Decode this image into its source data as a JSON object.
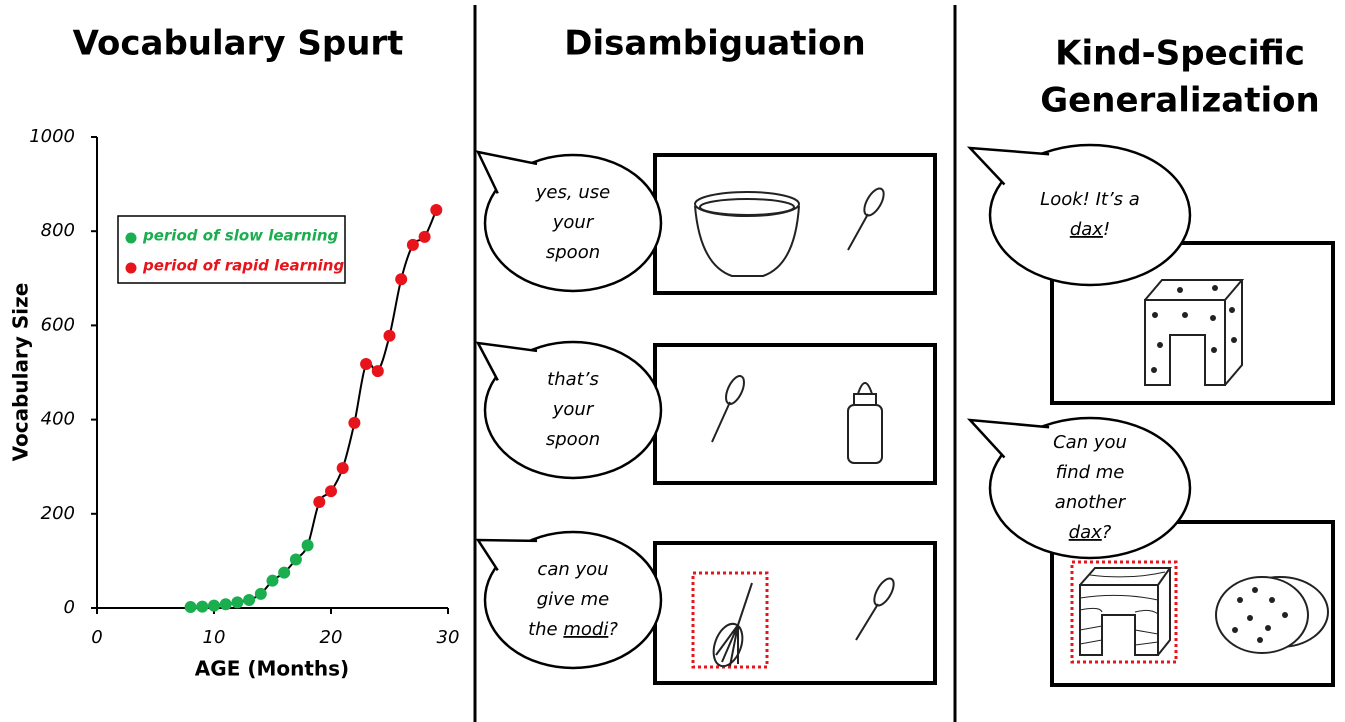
{
  "chart_data": {
    "type": "scatter",
    "title": "Vocabulary Spurt",
    "x_label": "AGE (Months)",
    "y_label": "Vocabulary Size",
    "xlim": [
      0,
      30
    ],
    "xticks": [
      0,
      10,
      20,
      30
    ],
    "ylim": [
      0,
      1000
    ],
    "yticks": [
      0,
      200,
      400,
      600,
      800,
      1000
    ],
    "legend": "upper left",
    "trend_line": true,
    "series": [
      {
        "name": "period of slow learning",
        "color": "#1aae4f",
        "x": [
          8,
          9,
          10,
          11,
          12,
          13,
          14,
          15,
          16,
          17,
          18
        ],
        "values": [
          2,
          3,
          5,
          8,
          12,
          17,
          30,
          58,
          75,
          103,
          133
        ]
      },
      {
        "name": "period of rapid learning",
        "color": "#e8141b",
        "x": [
          19,
          20,
          21,
          22,
          23,
          24,
          25,
          26,
          27,
          28,
          29
        ],
        "values": [
          225,
          248,
          297,
          393,
          518,
          503,
          578,
          698,
          771,
          788,
          845
        ]
      }
    ]
  },
  "panels": [
    {
      "title": [
        "Disambiguation"
      ],
      "scenes": [
        {
          "bubble": [
            "yes, use",
            "your",
            "spoon"
          ]
        },
        {
          "bubble": [
            "that’s",
            "your",
            "spoon"
          ]
        },
        {
          "bubble": [
            "can you",
            "give me",
            [
              {
                "text": "the "
              },
              {
                "text": "modi",
                "underline": true
              },
              {
                "text": "?"
              }
            ]
          ]
        }
      ]
    },
    {
      "title": [
        "Kind-Specific",
        "Generalization"
      ],
      "scenes": [
        {
          "bubble": [
            "Look! It’s a",
            [
              {
                "text": "dax",
                "underline": true
              },
              {
                "text": "!"
              }
            ]
          ]
        },
        {
          "bubble": [
            "Can you",
            "find me",
            "another",
            [
              {
                "text": "dax",
                "underline": true
              },
              {
                "text": "?"
              }
            ]
          ]
        }
      ]
    }
  ]
}
